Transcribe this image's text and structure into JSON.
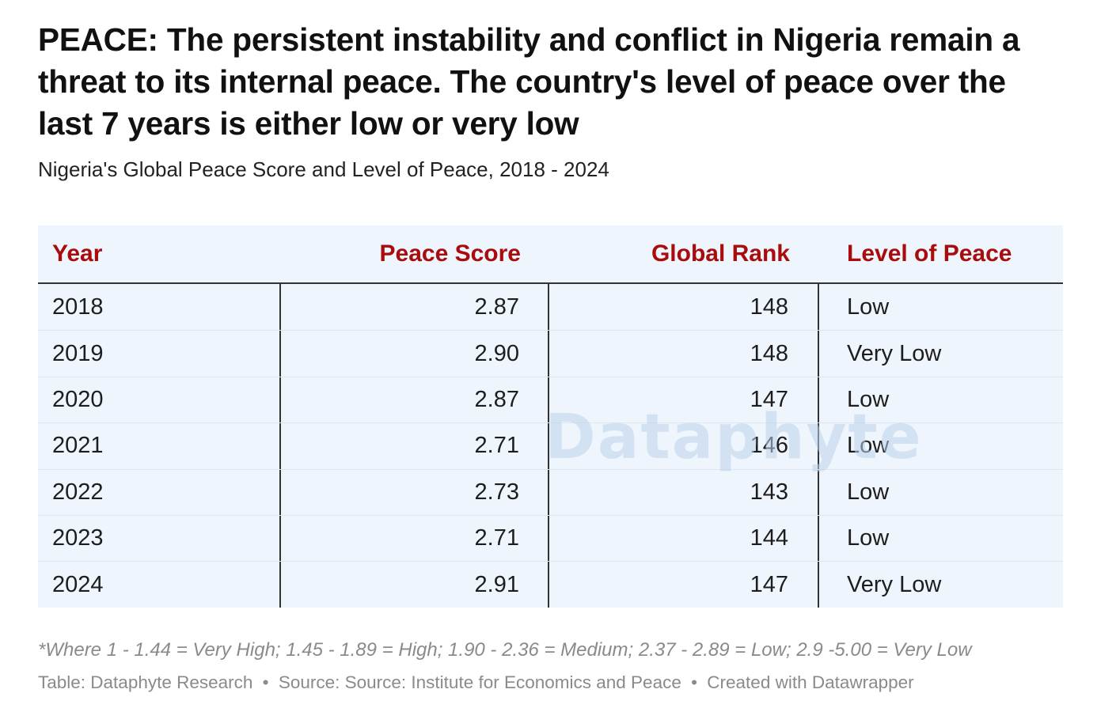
{
  "headline": "PEACE: The persistent instability and conflict in Nigeria remain a threat to its internal peace. The country's level of peace over the last 7 years is either low or very low",
  "subtitle": "Nigeria's Global Peace Score and Level of Peace, 2018 - 2024",
  "watermark": "Dataphyte",
  "colors": {
    "header_text": "#a80c0c",
    "table_background": "#eef5fc"
  },
  "chart_data": {
    "type": "table",
    "title": "PEACE: The persistent instability and conflict in Nigeria remain a threat to its internal peace. The country's level of peace over the last 7 years is either low or very low",
    "subtitle": "Nigeria's Global Peace Score and Level of Peace, 2018 - 2024",
    "columns": [
      "Year",
      "Peace Score",
      "Global Rank",
      "Level of Peace"
    ],
    "rows": [
      [
        "2018",
        "2.87",
        "148",
        "Low"
      ],
      [
        "2019",
        "2.90",
        "148",
        "Very Low"
      ],
      [
        "2020",
        "2.87",
        "147",
        "Low"
      ],
      [
        "2021",
        "2.71",
        "146",
        "Low"
      ],
      [
        "2022",
        "2.73",
        "143",
        "Low"
      ],
      [
        "2023",
        "2.71",
        "144",
        "Low"
      ],
      [
        "2024",
        "2.91",
        "147",
        "Very Low"
      ]
    ]
  },
  "note": "*Where 1 - 1.44 = Very High; 1.45 - 1.89 = High; 1.90 - 2.36 = Medium; 2.37 - 2.89 = Low; 2.9 -5.00 = Very Low",
  "footer": {
    "table_credit": "Table: Dataphyte Research",
    "source": "Source: Source: Institute for Economics and Peace",
    "created_with": "Created with Datawrapper",
    "separator": "•"
  }
}
